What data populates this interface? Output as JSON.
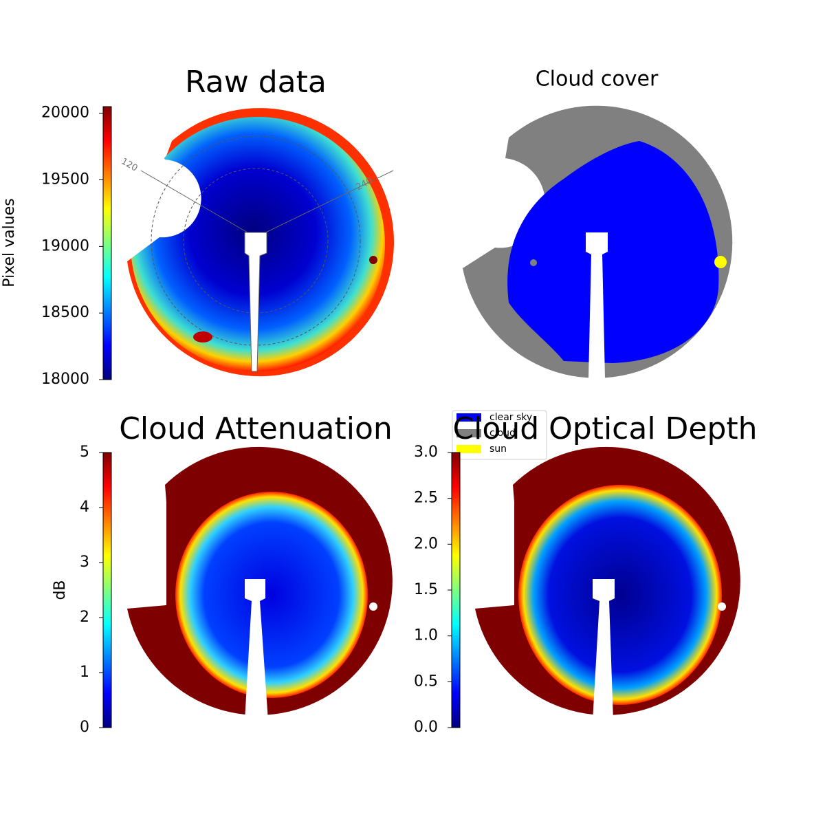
{
  "chart_data": [
    {
      "type": "image",
      "title": "Raw data",
      "colorbar_label": "Pixel values",
      "ylim": [
        18000,
        20050
      ],
      "yticks": [
        18000,
        18500,
        19000,
        19500,
        20000
      ],
      "annotations": [
        "120",
        "240"
      ]
    },
    {
      "type": "image",
      "title": "Cloud cover",
      "legend": [
        {
          "name": "clear sky",
          "color": "#0000ff"
        },
        {
          "name": "cloud",
          "color": "#808080"
        },
        {
          "name": "sun",
          "color": "#ffff00"
        }
      ]
    },
    {
      "type": "image",
      "title": "Cloud Attenuation",
      "colorbar_label": "dB",
      "ylim": [
        0,
        5
      ],
      "yticks": [
        0,
        1,
        2,
        3,
        4,
        5
      ]
    },
    {
      "type": "image",
      "title": "Cloud Optical Depth",
      "ylim": [
        0,
        3
      ],
      "yticks": [
        {
          "value": 0,
          "label": "0.0"
        },
        0.5,
        {
          "value": 1,
          "label": "1.0"
        },
        1.5,
        {
          "value": 2,
          "label": "2.0"
        },
        2.5,
        {
          "value": 3,
          "label": "3.0"
        }
      ]
    }
  ]
}
